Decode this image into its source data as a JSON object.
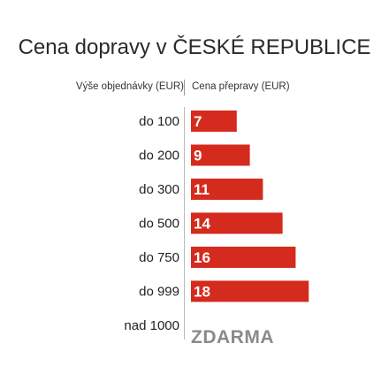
{
  "chart_data": {
    "type": "bar",
    "orientation": "horizontal",
    "title": "Cena dopravy v ČESKÉ REPUBLICE",
    "category_header": "Výše objednávky (EUR)",
    "value_header": "Cena přepravy (EUR)",
    "categories": [
      "do 100",
      "do 200",
      "do 300",
      "do 500",
      "do 750",
      "do 999",
      "nad 1000"
    ],
    "values": [
      7,
      9,
      11,
      14,
      16,
      18,
      0
    ],
    "value_labels": [
      "7",
      "9",
      "11",
      "14",
      "16",
      "18",
      "ZDARMA"
    ],
    "bar_color": "#d42b1e",
    "free_text_color": "#8a8a8a"
  }
}
